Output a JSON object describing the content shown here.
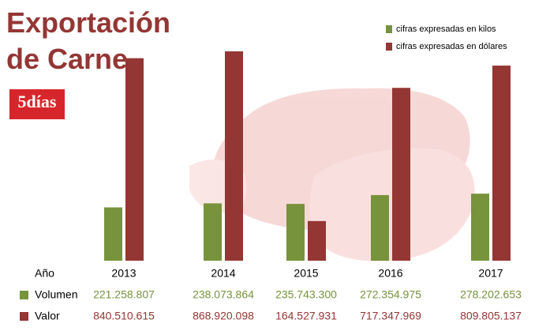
{
  "chart_data": {
    "type": "bar",
    "title": "Exportación de Carne",
    "logo": "5días",
    "category_label": "Año",
    "categories": [
      "2013",
      "2014",
      "2015",
      "2016",
      "2017"
    ],
    "series": [
      {
        "name": "cifras expresadas en kilos",
        "row_label": "Volumen",
        "color": "#77933c",
        "values": [
          221258807,
          238073864,
          235743300,
          272354975,
          278202653
        ],
        "value_labels": [
          "221.258.807",
          "238.073.864",
          "235.743.300",
          "272.354.975",
          "278.202.653"
        ]
      },
      {
        "name": "cifras expresadas en dólares",
        "row_label": "Valor",
        "color": "#943634",
        "values": [
          840510615,
          868920098,
          164527931,
          717347969,
          809805137
        ],
        "value_labels": [
          "840.510.615",
          "868.920.098",
          "164.527.931",
          "717.347.969",
          "809.805.137"
        ]
      }
    ]
  }
}
